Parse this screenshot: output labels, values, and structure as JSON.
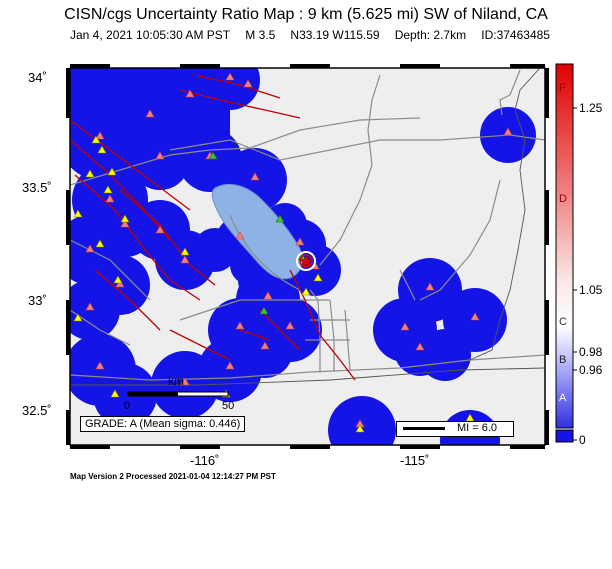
{
  "header": {
    "title": "CISN/cgs Uncertainty Ratio Map : 9 km (5.625 mi) SW of Niland, CA",
    "date": "Jan  4, 2021 10:05:30 AM PST",
    "magnitude": "M 3.5",
    "location": "N33.19 W115.59",
    "depth": "Depth: 2.7km",
    "event_id": "ID:37463485"
  },
  "axes": {
    "y_ticks": [
      "34˚",
      "33.5˚",
      "33˚",
      "32.5˚"
    ],
    "x_ticks": [
      "-116˚",
      "-115˚"
    ]
  },
  "colorbar": {
    "letters": [
      "F",
      "D",
      "C",
      "B",
      "A"
    ],
    "values": [
      "1.25",
      "1.05",
      "0.98",
      "0.96",
      "0"
    ]
  },
  "grade": "GRADE: A (Mean sigma: 0.446)",
  "scale_bar": {
    "label": "km",
    "start": "0",
    "end": "50"
  },
  "mi_legend": "MI = 6.0",
  "footer": "Map Version 2 Processed 2021-01-04 12:14:27 PM PST",
  "colors": {
    "background": "#eeeeee",
    "uncertainty_blue": "#1414e6",
    "lake": "#8fb2e6",
    "faults": "#c00000",
    "roads": "#8c8c8c",
    "station_red": "#f08080",
    "station_yellow": "#ffff00",
    "station_green": "#40c040"
  }
}
